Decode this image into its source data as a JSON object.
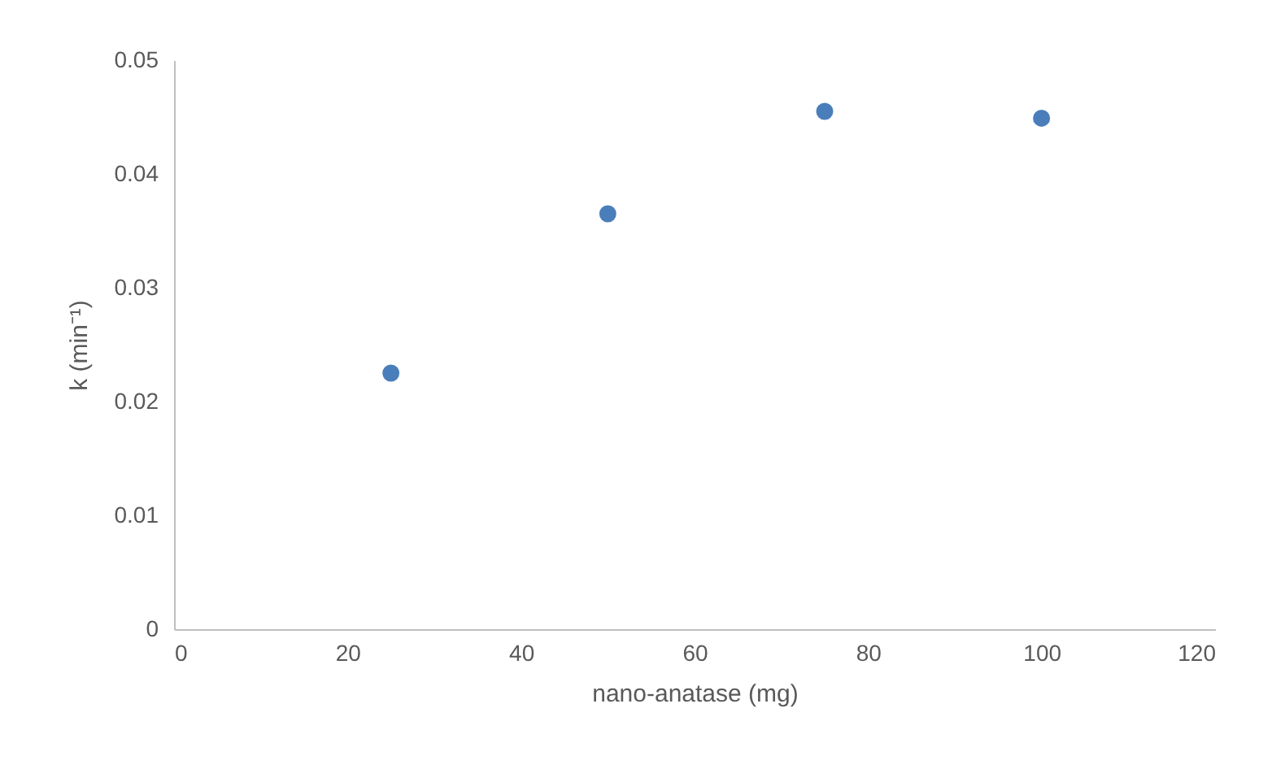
{
  "chart_data": {
    "type": "scatter",
    "xlabel": "nano-anatase (mg)",
    "ylabel": "k (min⁻¹)",
    "x": [
      25,
      50,
      75,
      100
    ],
    "series": [
      {
        "color": "#4a7ebb",
        "values": [
          0.0225,
          0.0365,
          0.0455,
          0.0449
        ]
      }
    ],
    "xlim": [
      0,
      120
    ],
    "xticks": [
      0,
      20,
      40,
      60,
      80,
      100,
      120
    ],
    "ylim": [
      0,
      0.05
    ],
    "yticks": [
      0,
      0.01,
      0.02,
      0.03,
      0.04,
      0.05
    ],
    "grid": false,
    "marker": "circle"
  }
}
